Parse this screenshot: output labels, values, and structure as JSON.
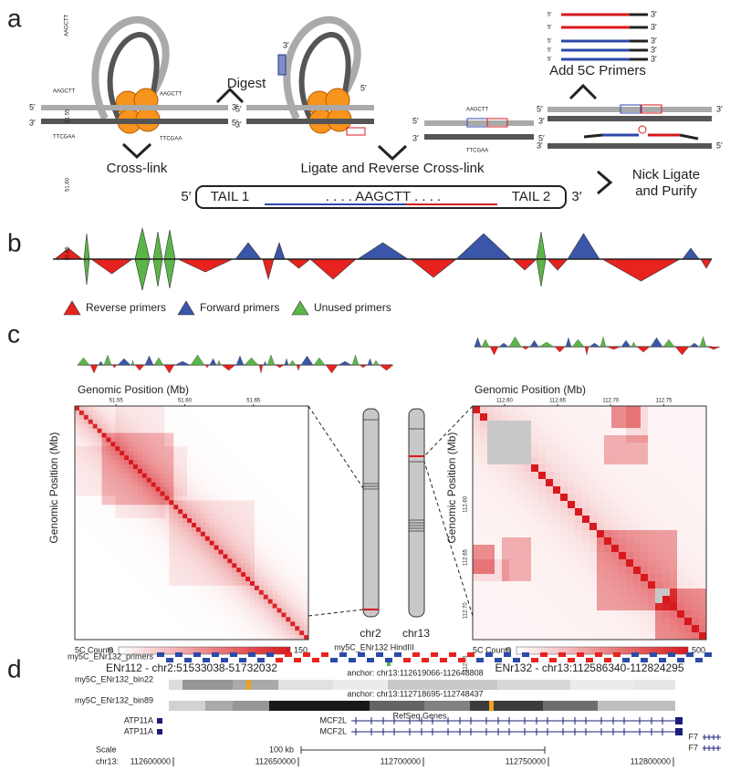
{
  "panel_a": {
    "label": "a",
    "steps": {
      "digest": "Digest",
      "primers": "Add 5C Primers",
      "crosslink": "Cross-link",
      "ligate": "Ligate and Reverse Cross-link",
      "nick": [
        "Nick Ligate",
        "and Purify"
      ]
    },
    "ends": {
      "five": "5′",
      "three": "3′"
    },
    "site": "AAGCTT",
    "site_rc": "TTCGAA",
    "product": {
      "tail1": "TAIL 1",
      "middle": ". . . . AAGCTT . . . .",
      "tail2": "TAIL 2"
    }
  },
  "panel_b": {
    "label": "b",
    "legend": [
      "Reverse primers",
      "Forward primers",
      "Unused primers"
    ]
  },
  "panel_c": {
    "label": "c",
    "axis_title": "Genomic Position (Mb)",
    "colorbar_label": "5C Counts",
    "left": {
      "ticks": [
        "51.55",
        "51.60",
        "51.65"
      ],
      "colorbar_ticks": [
        0,
        150
      ],
      "caption": "ENr112 - chr2:51533038-51732032",
      "chromosome": "chr2"
    },
    "right": {
      "ticks": [
        "112.60",
        "112.65",
        "112.70",
        "112.75"
      ],
      "colorbar_ticks": [
        0,
        500
      ],
      "caption": "ENr132 - chr13:112586340-112824295",
      "chromosome": "chr13"
    }
  },
  "panel_d": {
    "label": "d",
    "tracks": [
      "my5C_ENr132_primers",
      "my5C_ENr132_bin22",
      "my5C_ENr132_bin89"
    ],
    "hindiii": "my5C_ENr132 HindIII",
    "anchors": [
      "anchor: chr13:112619066-112648808",
      "anchor: chr13:112718695-112748437"
    ],
    "refseq": "RefSeq Genes",
    "genes": [
      "ATP11A",
      "MCF2L",
      "F7"
    ],
    "scale": "Scale",
    "scale_bar": "100 kb",
    "chrom": "chr13:",
    "positions": [
      112600000,
      112650000,
      112700000,
      112750000,
      112800000
    ]
  }
}
